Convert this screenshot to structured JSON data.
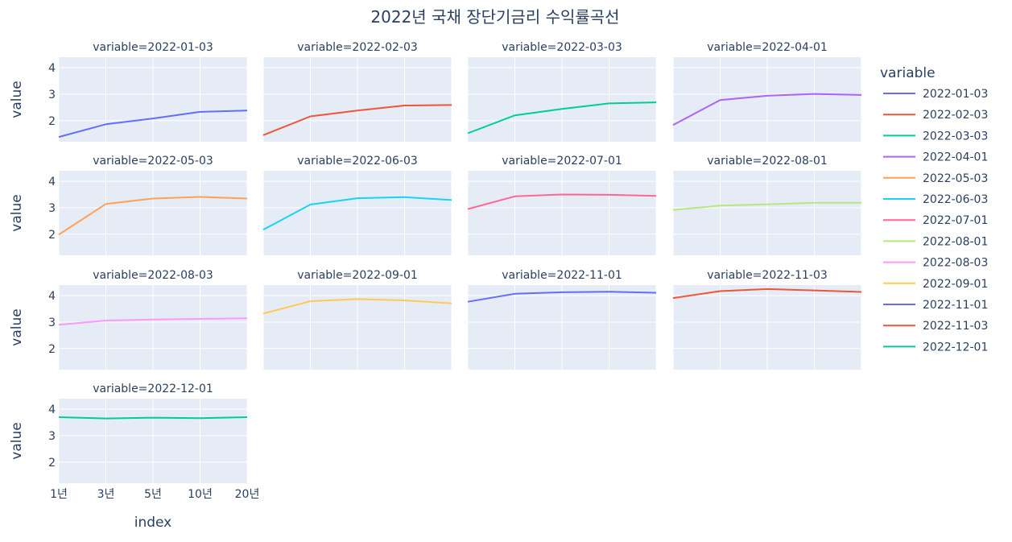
{
  "chart_data": {
    "type": "line",
    "title": "2022년 국채 장단기금리 수익률곡선",
    "xlabel": "index",
    "ylabel": "value",
    "categories": [
      "1년",
      "3년",
      "5년",
      "10년",
      "20년"
    ],
    "ylim": [
      1.2,
      4.4
    ],
    "yticks": [
      2,
      3,
      4
    ],
    "grid": true,
    "legend": {
      "title": "variable",
      "position": "right"
    },
    "facet_prefix": "variable=",
    "series": [
      {
        "name": "2022-01-03",
        "color": "#636efa",
        "values": [
          1.38,
          1.86,
          2.08,
          2.33,
          2.38
        ]
      },
      {
        "name": "2022-02-03",
        "color": "#ef553b",
        "values": [
          1.45,
          2.16,
          2.38,
          2.57,
          2.59
        ]
      },
      {
        "name": "2022-03-03",
        "color": "#00cc96",
        "values": [
          1.52,
          2.2,
          2.44,
          2.65,
          2.69
        ]
      },
      {
        "name": "2022-04-01",
        "color": "#ab63fa",
        "values": [
          1.83,
          2.78,
          2.94,
          3.01,
          2.97
        ]
      },
      {
        "name": "2022-05-03",
        "color": "#ffa15a",
        "values": [
          1.98,
          3.14,
          3.35,
          3.41,
          3.35
        ]
      },
      {
        "name": "2022-06-03",
        "color": "#19d3f3",
        "values": [
          2.17,
          3.12,
          3.36,
          3.4,
          3.29
        ]
      },
      {
        "name": "2022-07-01",
        "color": "#ff6692",
        "values": [
          2.95,
          3.43,
          3.5,
          3.49,
          3.45
        ]
      },
      {
        "name": "2022-08-01",
        "color": "#b6e880",
        "values": [
          2.92,
          3.08,
          3.13,
          3.19,
          3.19
        ]
      },
      {
        "name": "2022-08-03",
        "color": "#ff97ff",
        "values": [
          2.9,
          3.06,
          3.1,
          3.12,
          3.14
        ]
      },
      {
        "name": "2022-09-01",
        "color": "#fecb52",
        "values": [
          3.32,
          3.79,
          3.87,
          3.82,
          3.71
        ]
      },
      {
        "name": "2022-11-01",
        "color": "#636efa",
        "values": [
          3.77,
          4.07,
          4.13,
          4.15,
          4.11
        ]
      },
      {
        "name": "2022-11-03",
        "color": "#ef553b",
        "values": [
          3.91,
          4.17,
          4.25,
          4.2,
          4.14
        ]
      },
      {
        "name": "2022-12-01",
        "color": "#00cc96",
        "values": [
          3.7,
          3.65,
          3.68,
          3.66,
          3.7
        ]
      }
    ]
  }
}
